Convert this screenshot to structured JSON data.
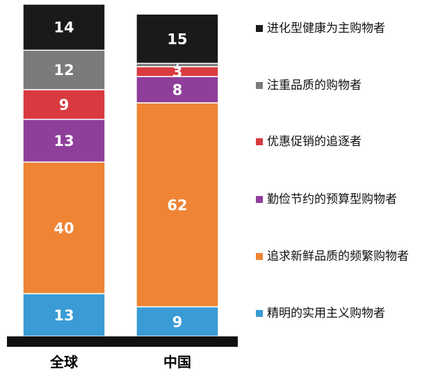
{
  "chart_data": {
    "type": "bar",
    "stacked": true,
    "categories": [
      "全球",
      "中国"
    ],
    "series": [
      {
        "name": "精明的实用主义购物者",
        "color": "#3a9bd5",
        "values": [
          13,
          9
        ]
      },
      {
        "name": "追求新鲜品质的频繁购物者",
        "color": "#ee8434",
        "values": [
          40,
          62
        ]
      },
      {
        "name": "勤俭节约的预算型购物者",
        "color": "#8e3f9a",
        "values": [
          13,
          8
        ]
      },
      {
        "name": "优惠促销的追逐者",
        "color": "#d93a3f",
        "values": [
          9,
          3
        ]
      },
      {
        "name": "注重品质的购物者",
        "color": "#7b7b7b",
        "values": [
          12,
          1
        ]
      },
      {
        "name": "进化型健康为主购物者",
        "color": "#1a1a1a",
        "values": [
          14,
          15
        ]
      }
    ],
    "ylim": [
      0,
      101
    ],
    "legend_position": "right",
    "legend_order": [
      "进化型健康为主购物者",
      "注重品质的购物者",
      "优惠促销的追逐者",
      "勤俭节约的预算型购物者",
      "追求新鲜品质的频繁购物者",
      "精明的实用主义购物者"
    ],
    "grid": false
  }
}
